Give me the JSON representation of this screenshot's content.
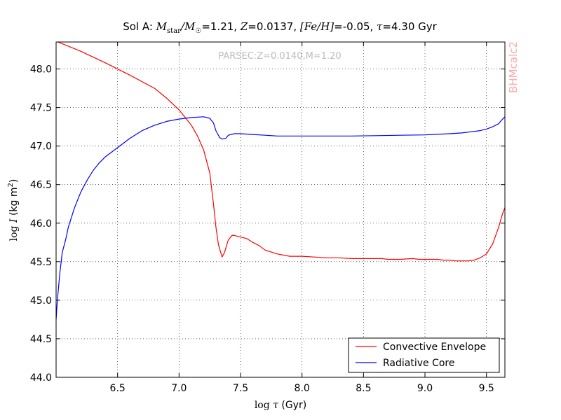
{
  "chart_data": {
    "type": "line",
    "title": "Sol A: M_star/M_☉=1.21, Z=0.0137, [Fe/H]=-0.05, τ=4.30 Gyr",
    "title_parts": {
      "prefix": "Sol A: ",
      "mass_label": "M",
      "mass_sub": "star",
      "mass_sep": "/M",
      "sun_sub": "☉",
      "mass_value": "=1.21, ",
      "z_label": "Z",
      "z_value": "=0.0137, ",
      "feh_label": "[Fe/H]",
      "feh_value": "=-0.05, ",
      "tau_label": "τ",
      "tau_value": "=4.30 Gyr"
    },
    "xlabel": "log τ (Gyr)",
    "xlabel_parts": {
      "log": "log ",
      "sym": "τ",
      "unit": " (Gyr)"
    },
    "ylabel": "log I (kg m²)",
    "ylabel_parts": {
      "log": "log ",
      "sym": "I",
      "unit": " (kg m",
      "sup": "2",
      "close": ")"
    },
    "annotation": "PARSEC:Z=0.0140,M=1.20",
    "side_label": "BHMcalc2",
    "xlim": [
      6.0,
      9.65
    ],
    "ylim": [
      44.0,
      48.35
    ],
    "xticks": [
      "6.5",
      "7.0",
      "7.5",
      "8.0",
      "8.5",
      "9.0",
      "9.5"
    ],
    "xtick_values": [
      6.5,
      7.0,
      7.5,
      8.0,
      8.5,
      9.0,
      9.5
    ],
    "yticks": [
      "44.0",
      "44.5",
      "45.0",
      "45.5",
      "46.0",
      "46.5",
      "47.0",
      "47.5",
      "48.0"
    ],
    "ytick_values": [
      44.0,
      44.5,
      45.0,
      45.5,
      46.0,
      46.5,
      47.0,
      47.5,
      48.0
    ],
    "grid": true,
    "legend_position": "bottom-right",
    "series": [
      {
        "name": "Convective Envelope",
        "color": "#ff0000",
        "x": [
          6.0,
          6.2,
          6.4,
          6.6,
          6.8,
          6.9,
          7.0,
          7.1,
          7.15,
          7.2,
          7.25,
          7.28,
          7.3,
          7.32,
          7.35,
          7.37,
          7.4,
          7.43,
          7.45,
          7.5,
          7.55,
          7.6,
          7.65,
          7.7,
          7.8,
          7.9,
          8.0,
          8.1,
          8.2,
          8.3,
          8.4,
          8.5,
          8.6,
          8.65,
          8.7,
          8.8,
          8.9,
          8.95,
          9.0,
          9.05,
          9.1,
          9.15,
          9.2,
          9.25,
          9.3,
          9.35,
          9.4,
          9.45,
          9.5,
          9.55,
          9.6,
          9.63,
          9.65
        ],
        "y": [
          48.36,
          48.23,
          48.08,
          47.92,
          47.75,
          47.62,
          47.47,
          47.27,
          47.13,
          46.95,
          46.65,
          46.25,
          45.95,
          45.72,
          45.56,
          45.62,
          45.78,
          45.84,
          45.84,
          45.82,
          45.8,
          45.75,
          45.71,
          45.65,
          45.6,
          45.57,
          45.57,
          45.56,
          45.55,
          45.55,
          45.54,
          45.54,
          45.54,
          45.54,
          45.53,
          45.53,
          45.54,
          45.53,
          45.53,
          45.53,
          45.53,
          45.52,
          45.52,
          45.51,
          45.51,
          45.51,
          45.52,
          45.55,
          45.6,
          45.73,
          45.95,
          46.12,
          46.2
        ]
      },
      {
        "name": "Radiative Core",
        "color": "#0000ff",
        "x": [
          6.0,
          6.01,
          6.03,
          6.05,
          6.08,
          6.1,
          6.15,
          6.2,
          6.25,
          6.3,
          6.35,
          6.4,
          6.5,
          6.6,
          6.7,
          6.8,
          6.9,
          7.0,
          7.1,
          7.2,
          7.25,
          7.28,
          7.3,
          7.33,
          7.35,
          7.38,
          7.4,
          7.45,
          7.5,
          7.6,
          7.7,
          7.8,
          8.0,
          8.2,
          8.4,
          8.6,
          8.8,
          9.0,
          9.2,
          9.3,
          9.4,
          9.45,
          9.5,
          9.55,
          9.6,
          9.62,
          9.65
        ],
        "y": [
          44.75,
          45.0,
          45.35,
          45.62,
          45.8,
          45.95,
          46.2,
          46.4,
          46.55,
          46.68,
          46.78,
          46.86,
          46.98,
          47.1,
          47.2,
          47.27,
          47.32,
          47.35,
          47.37,
          47.38,
          47.36,
          47.3,
          47.2,
          47.11,
          47.09,
          47.1,
          47.14,
          47.16,
          47.16,
          47.15,
          47.14,
          47.13,
          47.13,
          47.13,
          47.13,
          47.135,
          47.14,
          47.145,
          47.16,
          47.17,
          47.19,
          47.2,
          47.22,
          47.25,
          47.29,
          47.33,
          47.38
        ]
      }
    ]
  }
}
